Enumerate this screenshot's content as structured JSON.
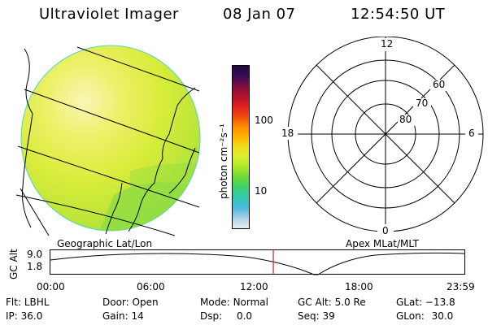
{
  "header": {
    "title": "Ultraviolet Imager",
    "date": "08 Jan 07",
    "time": "12:54:50 UT"
  },
  "colorbar": {
    "unit_label": "photon cm⁻²s⁻¹",
    "ticks": [
      "100",
      "10"
    ],
    "colors": [
      "#1b0a3a",
      "#3a0a5a",
      "#7a1040",
      "#b5102a",
      "#e02020",
      "#f04a10",
      "#ff8c00",
      "#ffb400",
      "#f0e020",
      "#d8f030",
      "#a8e828",
      "#6ed83a",
      "#3cd070",
      "#30c8b0",
      "#50b8e0",
      "#a8d0e8",
      "#e8eef2"
    ]
  },
  "panels": {
    "left_label": "Geographic Lat/Lon",
    "right_label": "Apex MLat/MLT"
  },
  "polar": {
    "top_label": "12",
    "bottom_label": "0",
    "left_label": "18",
    "right_label": "6",
    "ring_labels": [
      "60",
      "70",
      "80"
    ]
  },
  "timeline": {
    "axis_label": "GC Alt",
    "y_ticks": [
      "9.0",
      "1.8"
    ],
    "x_ticks": [
      "00:00",
      "06:00",
      "12:00",
      "18:00",
      "23:59"
    ],
    "current_time": "12:54:50",
    "marker_color": "#e02020"
  },
  "info": {
    "flt_label": "Flt:",
    "flt_value": "LBHL",
    "ip_label": "IP:",
    "ip_value": "36.0",
    "door_label": "Door:",
    "door_value": "Open",
    "gain_label": "Gain:",
    "gain_value": "14",
    "mode_label": "Mode:",
    "mode_value": "Normal",
    "dsp_label": "Dsp:",
    "dsp_value": "0.0",
    "gcalt_label": "GC Alt:",
    "gcalt_value": "5.0 Re",
    "seq_label": "Seq:",
    "seq_value": "39",
    "glat_label": "GLat:",
    "glat_value": "−13.8",
    "glon_label": "GLon:",
    "glon_value": "30.0"
  }
}
